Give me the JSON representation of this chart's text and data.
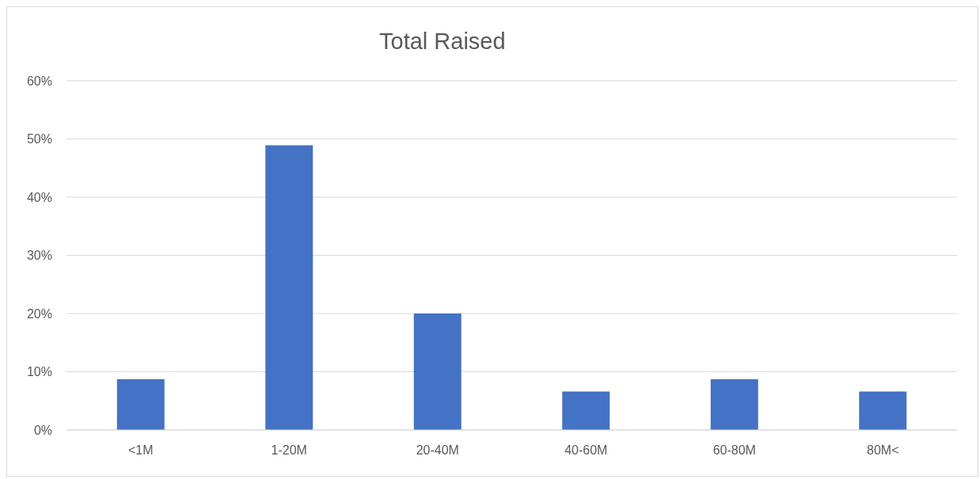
{
  "chart_data": {
    "type": "bar",
    "title": "Total Raised",
    "categories": [
      "<1M",
      "1-20M",
      "20-40M",
      "40-60M",
      "60-80M",
      "80M<"
    ],
    "values": [
      8.7,
      48.9,
      20,
      6.6,
      8.7,
      6.6
    ],
    "color": "#4472c4",
    "ylim": [
      0,
      60
    ],
    "yticks": [
      {
        "value": 0,
        "label": "0%"
      },
      {
        "value": 10,
        "label": "10%"
      },
      {
        "value": 20,
        "label": "20%"
      },
      {
        "value": 30,
        "label": "30%"
      },
      {
        "value": 40,
        "label": "40%"
      },
      {
        "value": 50,
        "label": "50%"
      },
      {
        "value": 60,
        "label": "60%"
      }
    ],
    "grid": "y",
    "legend": false
  }
}
